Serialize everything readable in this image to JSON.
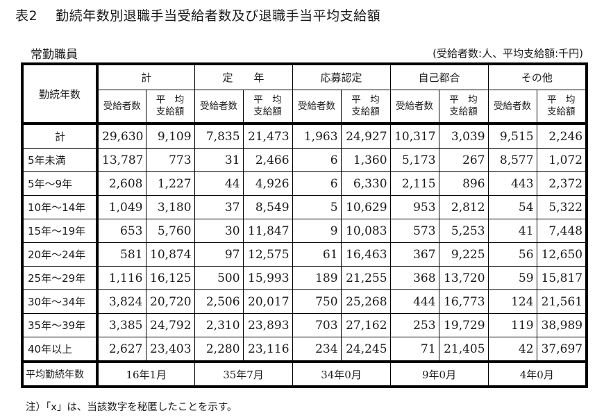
{
  "title": {
    "number": "表2",
    "text": "勤続年数別退職手当受給者数及び退職手当平均支給額"
  },
  "subtitle": "常勤職員",
  "unit_note": "(受給者数:人、平均支給額:千円)",
  "table": {
    "row_header_label": "勤続年数",
    "groups": [
      "計",
      "定　　年",
      "応募認定",
      "自己都合",
      "その他"
    ],
    "sub_headers": {
      "count": "受給者数",
      "avg_line1": "平　均",
      "avg_line2": "支給額"
    },
    "rows": [
      {
        "label": "計",
        "values": [
          "29,630",
          "9,109",
          "7,835",
          "21,473",
          "1,963",
          "24,927",
          "10,317",
          "3,039",
          "9,515",
          "2,246"
        ]
      },
      {
        "label": "5年未満",
        "values": [
          "13,787",
          "773",
          "31",
          "2,466",
          "6",
          "1,360",
          "5,173",
          "267",
          "8,577",
          "1,072"
        ]
      },
      {
        "label": "5年～9年",
        "values": [
          "2,608",
          "1,227",
          "44",
          "4,926",
          "6",
          "6,330",
          "2,115",
          "896",
          "443",
          "2,372"
        ]
      },
      {
        "label": "10年～14年",
        "values": [
          "1,049",
          "3,180",
          "37",
          "8,549",
          "5",
          "10,629",
          "953",
          "2,812",
          "54",
          "5,322"
        ]
      },
      {
        "label": "15年～19年",
        "values": [
          "653",
          "5,760",
          "30",
          "11,847",
          "9",
          "10,083",
          "573",
          "5,253",
          "41",
          "7,448"
        ]
      },
      {
        "label": "20年～24年",
        "values": [
          "581",
          "10,874",
          "97",
          "12,575",
          "61",
          "16,463",
          "367",
          "9,225",
          "56",
          "12,650"
        ]
      },
      {
        "label": "25年～29年",
        "values": [
          "1,116",
          "16,125",
          "500",
          "15,993",
          "189",
          "21,255",
          "368",
          "13,720",
          "59",
          "15,817"
        ]
      },
      {
        "label": "30年～34年",
        "values": [
          "3,824",
          "20,720",
          "2,506",
          "20,017",
          "750",
          "25,268",
          "444",
          "16,773",
          "124",
          "21,561"
        ]
      },
      {
        "label": "35年～39年",
        "values": [
          "3,385",
          "24,792",
          "2,310",
          "23,893",
          "703",
          "27,162",
          "253",
          "19,729",
          "119",
          "38,989"
        ]
      },
      {
        "label": "40年以上",
        "values": [
          "2,627",
          "23,403",
          "2,280",
          "23,116",
          "234",
          "24,245",
          "71",
          "21,405",
          "42",
          "37,697"
        ]
      }
    ],
    "average_row": {
      "label": "平均勤続年数",
      "values": [
        "16年1月",
        "35年7月",
        "34年0月",
        "9年0月",
        "4年0月"
      ]
    }
  },
  "footnote": "注）「x」は、当該数字を秘匿したことを示す。"
}
